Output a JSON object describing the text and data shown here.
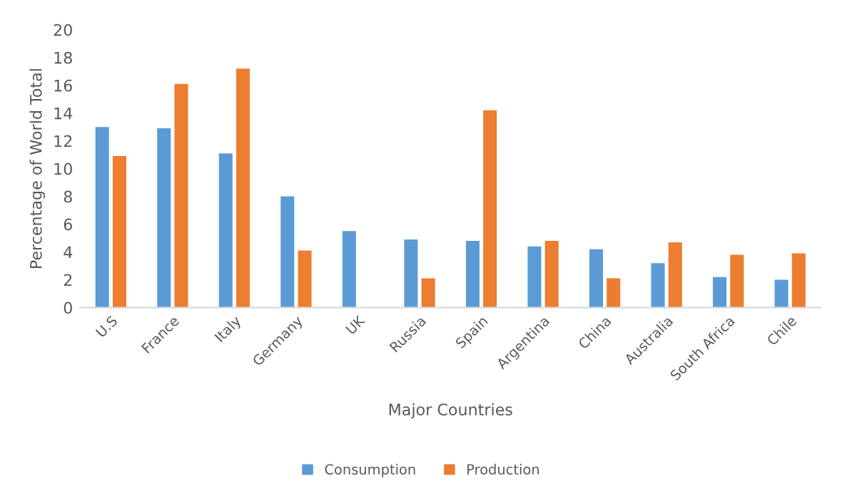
{
  "chart_data": {
    "type": "bar",
    "xlabel": "Major Countries",
    "ylabel": "Percentage of World Total",
    "categories": [
      "U.S",
      "France",
      "Italy",
      "Germany",
      "UK",
      "Russia",
      "Spain",
      "Argentina",
      "China",
      "Australia",
      "South Africa",
      "Chile"
    ],
    "series": [
      {
        "name": "Consumption",
        "color": "#5b9bd5",
        "values": [
          13.0,
          12.9,
          11.1,
          8.0,
          5.5,
          4.9,
          4.8,
          4.4,
          4.2,
          3.2,
          2.2,
          2.0
        ]
      },
      {
        "name": "Production",
        "color": "#ed7d31",
        "values": [
          10.9,
          16.1,
          17.2,
          4.1,
          null,
          2.1,
          14.2,
          4.8,
          2.1,
          4.7,
          3.8,
          3.9
        ]
      }
    ],
    "ylim": [
      0,
      20
    ],
    "yticks": [
      0,
      2,
      4,
      6,
      8,
      10,
      12,
      14,
      16,
      18,
      20
    ],
    "grid": false,
    "legend": "bottom"
  }
}
